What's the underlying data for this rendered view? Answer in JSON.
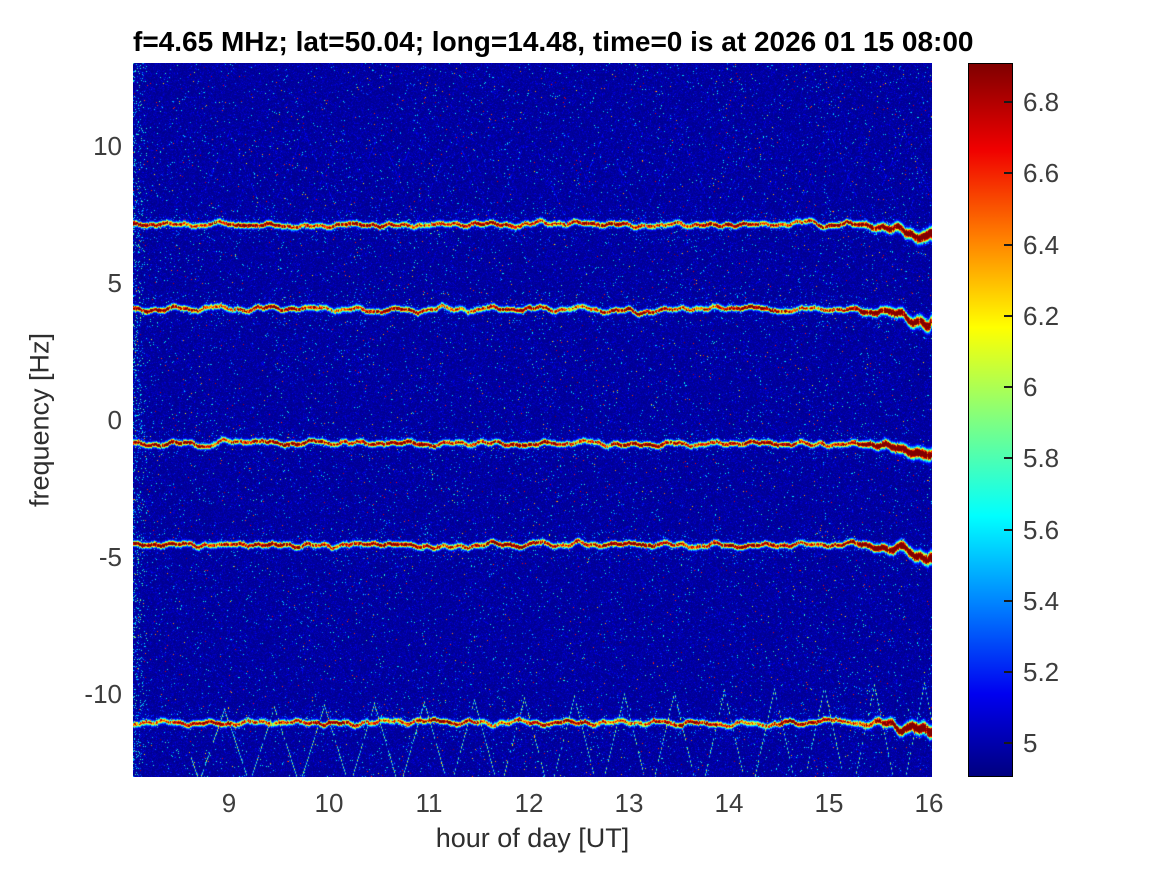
{
  "figure": {
    "title": "f=4.65 MHz;  lat=50.04; long=14.48, time=0 is at 2026 01 15 08:00"
  },
  "chart_data": {
    "type": "heatmap",
    "title": "f=4.65 MHz;  lat=50.04; long=14.48, time=0 is at 2026 01 15 08:00",
    "xlabel": "hour of day [UT]",
    "ylabel": "frequency [Hz]",
    "xlim": [
      8.04,
      16.03
    ],
    "ylim": [
      -13.05,
      13.05
    ],
    "x_ticks": [
      9,
      10,
      11,
      12,
      13,
      14,
      15,
      16
    ],
    "y_ticks": [
      10,
      5,
      0,
      -5,
      -10
    ],
    "grid": false,
    "colorbar": {
      "colormap": "jet",
      "min": 4.905,
      "max": 6.91,
      "ticks": [
        5,
        5.2,
        5.4,
        5.6,
        5.8,
        6,
        6.2,
        6.4,
        6.6,
        6.8
      ],
      "position": "right"
    },
    "background_level": 5.0,
    "spectral_lines": [
      {
        "frequency_hz": 7.15,
        "peak_level": 6.85
      },
      {
        "frequency_hz": 4.05,
        "peak_level": 6.85
      },
      {
        "frequency_hz": -0.85,
        "peak_level": 6.9
      },
      {
        "frequency_hz": -4.55,
        "peak_level": 6.9
      },
      {
        "frequency_hz": -11.05,
        "peak_level": 6.85
      }
    ],
    "triangle_wave": {
      "center_hz": -11.9,
      "amplitude_start_hz": 1.3,
      "amplitude_end_hz": 2.3,
      "period_hours": 0.5,
      "start_hour": 8.62,
      "level": 5.9
    },
    "faint_chevrons": {
      "center_hz": 8.9,
      "amplitude_hz": 1.65,
      "period_hours": 0.75,
      "level": 5.2
    },
    "colors": {
      "figure_background": "#ffffff",
      "noise_background": "#0a13b4",
      "tick_label": "#3d3d3d",
      "title_color": "#000000",
      "colorbar_border": "#000000"
    }
  }
}
